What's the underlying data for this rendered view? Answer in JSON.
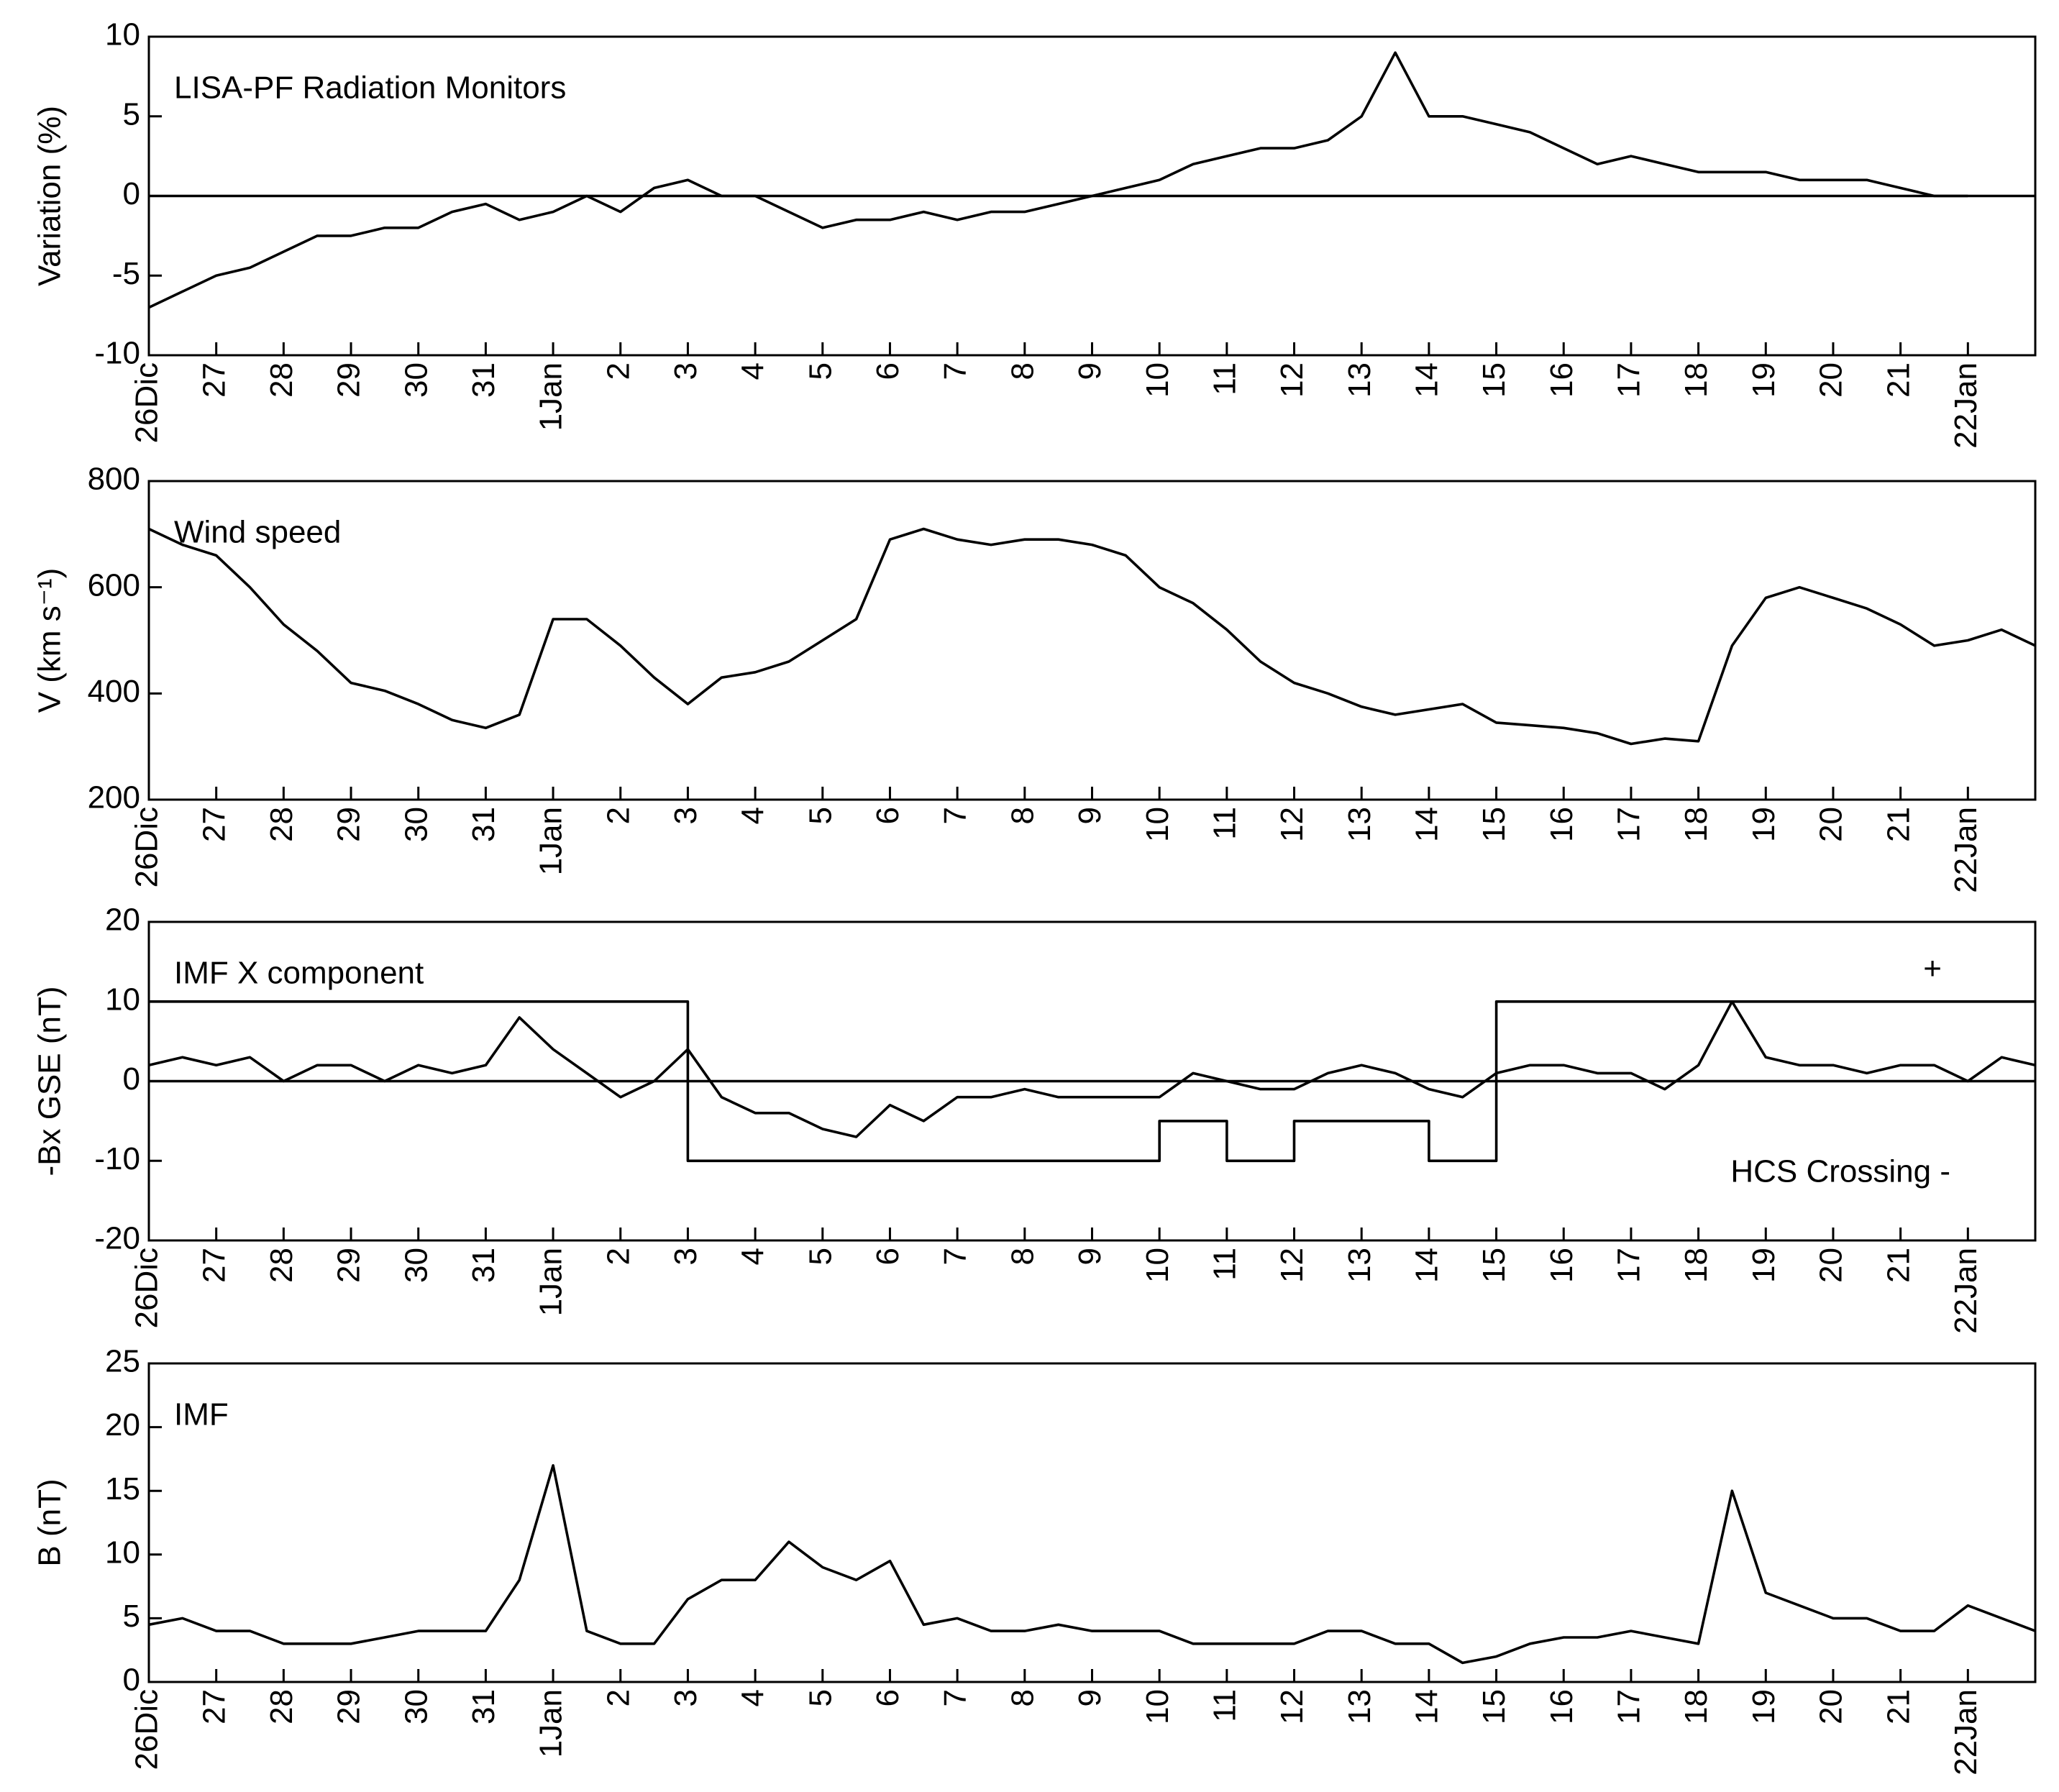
{
  "chart_data": [
    {
      "type": "line",
      "label": "LISA-PF Radiation Monitors",
      "y_label": "Variation (%)",
      "x": [
        0,
        0.5,
        1,
        1.5,
        2,
        2.5,
        3,
        3.5,
        4,
        4.5,
        5,
        5.5,
        6,
        6.5,
        7,
        7.5,
        8,
        8.5,
        9,
        9.5,
        10,
        10.5,
        11,
        11.5,
        12,
        12.5,
        13,
        13.5,
        14,
        14.5,
        15,
        15.5,
        16,
        16.5,
        17,
        17.5,
        18,
        18.5,
        19,
        19.5,
        20,
        20.5,
        21,
        21.5,
        22,
        22.5,
        23,
        23.5,
        24,
        24.5,
        25,
        25.5,
        26,
        26.5,
        27
      ],
      "series": [
        {
          "color": "#000000",
          "values": [
            -7,
            -6,
            -5,
            -4.5,
            -3.5,
            -2.5,
            -2.5,
            -2,
            -2,
            -1,
            -0.5,
            -1.5,
            -1,
            0,
            -1,
            0.5,
            1,
            0,
            0,
            -1,
            -2,
            -1.5,
            -1.5,
            -1,
            -1.5,
            -1,
            -1,
            -0.5,
            0,
            0.5,
            1,
            2,
            2.5,
            3,
            3,
            3.5,
            5,
            9,
            5,
            5,
            4.5,
            4,
            3,
            2,
            2.5,
            2,
            1.5,
            1.5,
            1.5,
            1,
            1,
            1,
            0.5,
            0,
            0
          ]
        }
      ],
      "reference_line": 0,
      "xlim": [
        0,
        28
      ],
      "xticks": [
        {
          "value": 0,
          "label": "26Dic"
        },
        {
          "value": 1,
          "label": "27"
        },
        {
          "value": 2,
          "label": "28"
        },
        {
          "value": 3,
          "label": "29"
        },
        {
          "value": 4,
          "label": "30"
        },
        {
          "value": 5,
          "label": "31"
        },
        {
          "value": 6,
          "label": "1Jan"
        },
        {
          "value": 7,
          "label": "2"
        },
        {
          "value": 8,
          "label": "3"
        },
        {
          "value": 9,
          "label": "4"
        },
        {
          "value": 10,
          "label": "5"
        },
        {
          "value": 11,
          "label": "6"
        },
        {
          "value": 12,
          "label": "7"
        },
        {
          "value": 13,
          "label": "8"
        },
        {
          "value": 14,
          "label": "9"
        },
        {
          "value": 15,
          "label": "10"
        },
        {
          "value": 16,
          "label": "11"
        },
        {
          "value": 17,
          "label": "12"
        },
        {
          "value": 18,
          "label": "13"
        },
        {
          "value": 19,
          "label": "14"
        },
        {
          "value": 20,
          "label": "15"
        },
        {
          "value": 21,
          "label": "16"
        },
        {
          "value": 22,
          "label": "17"
        },
        {
          "value": 23,
          "label": "18"
        },
        {
          "value": 24,
          "label": "19"
        },
        {
          "value": 25,
          "label": "20"
        },
        {
          "value": 26,
          "label": "21"
        },
        {
          "value": 27,
          "label": "22Jan"
        }
      ],
      "ylim": [
        -10,
        10
      ],
      "yticks": [
        -10,
        -5,
        0,
        5,
        10
      ]
    },
    {
      "type": "line",
      "label": "Wind speed",
      "y_label": "V (km s⁻¹)",
      "x": [
        0,
        0.5,
        1,
        1.5,
        2,
        2.5,
        3,
        3.5,
        4,
        4.5,
        5,
        5.5,
        6,
        6.5,
        7,
        7.5,
        8,
        8.5,
        9,
        9.5,
        10,
        10.5,
        11,
        11.5,
        12,
        12.5,
        13,
        13.5,
        14,
        14.5,
        15,
        15.5,
        16,
        16.5,
        17,
        17.5,
        18,
        18.5,
        19,
        19.5,
        20,
        20.5,
        21,
        21.5,
        22,
        22.5,
        23,
        23.5,
        24,
        24.5,
        25,
        25.5,
        26,
        26.5,
        27,
        27.5,
        28
      ],
      "series": [
        {
          "color": "#000000",
          "values": [
            710,
            680,
            660,
            600,
            530,
            480,
            420,
            405,
            380,
            350,
            335,
            360,
            540,
            540,
            490,
            430,
            380,
            430,
            440,
            460,
            500,
            540,
            690,
            710,
            690,
            680,
            690,
            690,
            680,
            660,
            600,
            570,
            520,
            460,
            420,
            400,
            375,
            360,
            370,
            380,
            345,
            340,
            335,
            325,
            305,
            315,
            310,
            490,
            580,
            600,
            580,
            560,
            530,
            490,
            500,
            520,
            490
          ]
        }
      ],
      "xlim": [
        0,
        28
      ],
      "xticks": [
        {
          "value": 0,
          "label": "26Dic"
        },
        {
          "value": 1,
          "label": "27"
        },
        {
          "value": 2,
          "label": "28"
        },
        {
          "value": 3,
          "label": "29"
        },
        {
          "value": 4,
          "label": "30"
        },
        {
          "value": 5,
          "label": "31"
        },
        {
          "value": 6,
          "label": "1Jan"
        },
        {
          "value": 7,
          "label": "2"
        },
        {
          "value": 8,
          "label": "3"
        },
        {
          "value": 9,
          "label": "4"
        },
        {
          "value": 10,
          "label": "5"
        },
        {
          "value": 11,
          "label": "6"
        },
        {
          "value": 12,
          "label": "7"
        },
        {
          "value": 13,
          "label": "8"
        },
        {
          "value": 14,
          "label": "9"
        },
        {
          "value": 15,
          "label": "10"
        },
        {
          "value": 16,
          "label": "11"
        },
        {
          "value": 17,
          "label": "12"
        },
        {
          "value": 18,
          "label": "13"
        },
        {
          "value": 19,
          "label": "14"
        },
        {
          "value": 20,
          "label": "15"
        },
        {
          "value": 21,
          "label": "16"
        },
        {
          "value": 22,
          "label": "17"
        },
        {
          "value": 23,
          "label": "18"
        },
        {
          "value": 24,
          "label": "19"
        },
        {
          "value": 25,
          "label": "20"
        },
        {
          "value": 26,
          "label": "21"
        },
        {
          "value": 27,
          "label": "22Jan"
        }
      ],
      "ylim": [
        200,
        800
      ],
      "yticks": [
        200,
        400,
        600,
        800
      ]
    },
    {
      "type": "line",
      "label": "IMF X component",
      "y_label": "-Bx GSE (nT)",
      "annotations": [
        "+",
        "HCS Crossing -"
      ],
      "x": [
        0,
        0.5,
        1,
        1.5,
        2,
        2.5,
        3,
        3.5,
        4,
        4.5,
        5,
        5.5,
        6,
        6.5,
        7,
        7.5,
        8,
        8.5,
        9,
        9.5,
        10,
        10.5,
        11,
        11.5,
        12,
        12.5,
        13,
        13.5,
        14,
        14.5,
        15,
        15.5,
        16,
        16.5,
        17,
        17.5,
        18,
        18.5,
        19,
        19.5,
        20,
        20.5,
        21,
        21.5,
        22,
        22.5,
        23,
        23.5,
        24,
        24.5,
        25,
        25.5,
        26,
        26.5,
        27,
        27.5,
        28
      ],
      "series": [
        {
          "color": "#000000",
          "values": [
            2,
            3,
            2,
            3,
            0,
            2,
            2,
            0,
            2,
            1,
            2,
            8,
            4,
            1,
            -2,
            0,
            4,
            -2,
            -4,
            -4,
            -6,
            -7,
            -3,
            -5,
            -2,
            -2,
            -1,
            -2,
            -2,
            -2,
            -2,
            1,
            0,
            -1,
            -1,
            1,
            2,
            1,
            -1,
            -2,
            1,
            2,
            2,
            1,
            1,
            -1,
            2,
            10,
            3,
            2,
            2,
            1,
            2,
            2,
            0,
            3,
            2
          ]
        },
        {
          "color": "#000000",
          "x": [
            0,
            8,
            8,
            15,
            15,
            16,
            16,
            17,
            17,
            19,
            19,
            20,
            20,
            28
          ],
          "values": [
            10,
            10,
            -10,
            -10,
            -5,
            -5,
            -10,
            -10,
            -5,
            -5,
            -10,
            -10,
            10,
            10
          ]
        }
      ],
      "reference_line": 0,
      "xlim": [
        0,
        28
      ],
      "xticks": [
        {
          "value": 0,
          "label": "26Dic"
        },
        {
          "value": 1,
          "label": "27"
        },
        {
          "value": 2,
          "label": "28"
        },
        {
          "value": 3,
          "label": "29"
        },
        {
          "value": 4,
          "label": "30"
        },
        {
          "value": 5,
          "label": "31"
        },
        {
          "value": 6,
          "label": "1Jan"
        },
        {
          "value": 7,
          "label": "2"
        },
        {
          "value": 8,
          "label": "3"
        },
        {
          "value": 9,
          "label": "4"
        },
        {
          "value": 10,
          "label": "5"
        },
        {
          "value": 11,
          "label": "6"
        },
        {
          "value": 12,
          "label": "7"
        },
        {
          "value": 13,
          "label": "8"
        },
        {
          "value": 14,
          "label": "9"
        },
        {
          "value": 15,
          "label": "10"
        },
        {
          "value": 16,
          "label": "11"
        },
        {
          "value": 17,
          "label": "12"
        },
        {
          "value": 18,
          "label": "13"
        },
        {
          "value": 19,
          "label": "14"
        },
        {
          "value": 20,
          "label": "15"
        },
        {
          "value": 21,
          "label": "16"
        },
        {
          "value": 22,
          "label": "17"
        },
        {
          "value": 23,
          "label": "18"
        },
        {
          "value": 24,
          "label": "19"
        },
        {
          "value": 25,
          "label": "20"
        },
        {
          "value": 26,
          "label": "21"
        },
        {
          "value": 27,
          "label": "22Jan"
        }
      ],
      "ylim": [
        -20,
        20
      ],
      "yticks": [
        -20,
        -10,
        0,
        10,
        20
      ]
    },
    {
      "type": "line",
      "label": "IMF",
      "y_label": "B (nT)",
      "x": [
        0,
        0.5,
        1,
        1.5,
        2,
        2.5,
        3,
        3.5,
        4,
        4.5,
        5,
        5.5,
        6,
        6.5,
        7,
        7.5,
        8,
        8.5,
        9,
        9.5,
        10,
        10.5,
        11,
        11.5,
        12,
        12.5,
        13,
        13.5,
        14,
        14.5,
        15,
        15.5,
        16,
        16.5,
        17,
        17.5,
        18,
        18.5,
        19,
        19.5,
        20,
        20.5,
        21,
        21.5,
        22,
        22.5,
        23,
        23.5,
        24,
        24.5,
        25,
        25.5,
        26,
        26.5,
        27,
        27.5,
        28
      ],
      "series": [
        {
          "color": "#000000",
          "values": [
            4.5,
            5,
            4,
            4,
            3,
            3,
            3,
            3.5,
            4,
            4,
            4,
            8,
            17,
            4,
            3,
            3,
            6.5,
            8,
            8,
            11,
            9,
            8,
            9.5,
            4.5,
            5,
            4,
            4,
            4.5,
            4,
            4,
            4,
            3,
            3,
            3,
            3,
            4,
            4,
            3,
            3,
            1.5,
            2,
            3,
            3.5,
            3.5,
            4,
            3.5,
            3,
            15,
            7,
            6,
            5,
            5,
            4,
            4,
            6,
            5,
            4
          ]
        }
      ],
      "xlim": [
        0,
        28
      ],
      "xticks": [
        {
          "value": 0,
          "label": "26Dic"
        },
        {
          "value": 1,
          "label": "27"
        },
        {
          "value": 2,
          "label": "28"
        },
        {
          "value": 3,
          "label": "29"
        },
        {
          "value": 4,
          "label": "30"
        },
        {
          "value": 5,
          "label": "31"
        },
        {
          "value": 6,
          "label": "1Jan"
        },
        {
          "value": 7,
          "label": "2"
        },
        {
          "value": 8,
          "label": "3"
        },
        {
          "value": 9,
          "label": "4"
        },
        {
          "value": 10,
          "label": "5"
        },
        {
          "value": 11,
          "label": "6"
        },
        {
          "value": 12,
          "label": "7"
        },
        {
          "value": 13,
          "label": "8"
        },
        {
          "value": 14,
          "label": "9"
        },
        {
          "value": 15,
          "label": "10"
        },
        {
          "value": 16,
          "label": "11"
        },
        {
          "value": 17,
          "label": "12"
        },
        {
          "value": 18,
          "label": "13"
        },
        {
          "value": 19,
          "label": "14"
        },
        {
          "value": 20,
          "label": "15"
        },
        {
          "value": 21,
          "label": "16"
        },
        {
          "value": 22,
          "label": "17"
        },
        {
          "value": 23,
          "label": "18"
        },
        {
          "value": 24,
          "label": "19"
        },
        {
          "value": 25,
          "label": "20"
        },
        {
          "value": 26,
          "label": "21"
        },
        {
          "value": 27,
          "label": "22Jan"
        }
      ],
      "ylim": [
        0,
        25
      ],
      "yticks": [
        0,
        5,
        10,
        15,
        20,
        25
      ]
    }
  ]
}
